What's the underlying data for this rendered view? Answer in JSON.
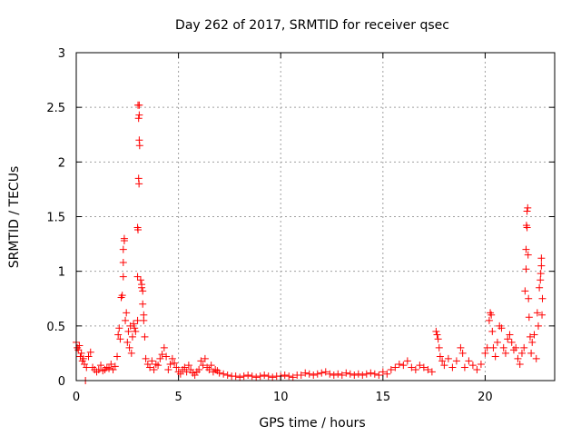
{
  "chart_data": {
    "type": "scatter",
    "title": "Day 262 of 2017, SRMTID for receiver qsec",
    "xlabel": "GPS time / hours",
    "ylabel": "SRMTID / TECUs",
    "xlim": [
      0,
      23.4
    ],
    "ylim": [
      0,
      3
    ],
    "xticks": [
      0,
      5,
      10,
      15,
      20
    ],
    "xtick_labels": [
      "0",
      "5",
      "10",
      "15",
      "20"
    ],
    "yticks": [
      0,
      0.5,
      1,
      1.5,
      2,
      2.5,
      3
    ],
    "ytick_labels": [
      "0",
      "0.5",
      "1",
      "1.5",
      "2",
      "2.5",
      "3"
    ],
    "grid": true,
    "marker": "+",
    "color": "#ff0000",
    "series": [
      {
        "name": "SRMTID",
        "points": [
          [
            0.0,
            0.35
          ],
          [
            0.05,
            0.3
          ],
          [
            0.1,
            0.28
          ],
          [
            0.15,
            0.32
          ],
          [
            0.2,
            0.22
          ],
          [
            0.25,
            0.25
          ],
          [
            0.3,
            0.18
          ],
          [
            0.35,
            0.2
          ],
          [
            0.4,
            0.15
          ],
          [
            0.45,
            0.0
          ],
          [
            0.5,
            0.12
          ],
          [
            0.6,
            0.22
          ],
          [
            0.7,
            0.26
          ],
          [
            0.8,
            0.12
          ],
          [
            0.9,
            0.1
          ],
          [
            1.0,
            0.08
          ],
          [
            1.1,
            0.1
          ],
          [
            1.2,
            0.14
          ],
          [
            1.3,
            0.09
          ],
          [
            1.4,
            0.1
          ],
          [
            1.5,
            0.12
          ],
          [
            1.6,
            0.11
          ],
          [
            1.7,
            0.15
          ],
          [
            1.8,
            0.1
          ],
          [
            1.9,
            0.13
          ],
          [
            2.0,
            0.22
          ],
          [
            2.05,
            0.42
          ],
          [
            2.1,
            0.48
          ],
          [
            2.15,
            0.38
          ],
          [
            2.2,
            0.76
          ],
          [
            2.25,
            0.78
          ],
          [
            2.3,
            0.95
          ],
          [
            2.3,
            1.08
          ],
          [
            2.3,
            1.2
          ],
          [
            2.35,
            1.28
          ],
          [
            2.35,
            1.3
          ],
          [
            2.4,
            0.55
          ],
          [
            2.45,
            0.62
          ],
          [
            2.5,
            0.35
          ],
          [
            2.55,
            0.45
          ],
          [
            2.6,
            0.3
          ],
          [
            2.65,
            0.5
          ],
          [
            2.7,
            0.25
          ],
          [
            2.75,
            0.4
          ],
          [
            2.8,
            0.52
          ],
          [
            2.85,
            0.48
          ],
          [
            2.9,
            0.45
          ],
          [
            3.0,
            0.55
          ],
          [
            3.0,
            0.95
          ],
          [
            3.0,
            1.4
          ],
          [
            3.02,
            1.38
          ],
          [
            3.05,
            1.85
          ],
          [
            3.07,
            1.8
          ],
          [
            3.1,
            2.15
          ],
          [
            3.08,
            2.2
          ],
          [
            3.05,
            2.4
          ],
          [
            3.08,
            2.43
          ],
          [
            3.02,
            2.52
          ],
          [
            3.08,
            2.52
          ],
          [
            3.15,
            0.92
          ],
          [
            3.2,
            0.88
          ],
          [
            3.2,
            0.85
          ],
          [
            3.25,
            0.7
          ],
          [
            3.25,
            0.82
          ],
          [
            3.3,
            0.55
          ],
          [
            3.3,
            0.6
          ],
          [
            3.35,
            0.4
          ],
          [
            3.4,
            0.2
          ],
          [
            3.5,
            0.15
          ],
          [
            3.6,
            0.12
          ],
          [
            3.7,
            0.18
          ],
          [
            3.8,
            0.1
          ],
          [
            3.9,
            0.15
          ],
          [
            4.0,
            0.14
          ],
          [
            4.1,
            0.2
          ],
          [
            4.2,
            0.24
          ],
          [
            4.3,
            0.3
          ],
          [
            4.4,
            0.22
          ],
          [
            4.5,
            0.1
          ],
          [
            4.6,
            0.15
          ],
          [
            4.7,
            0.2
          ],
          [
            4.8,
            0.16
          ],
          [
            4.9,
            0.12
          ],
          [
            5.0,
            0.08
          ],
          [
            5.1,
            0.06
          ],
          [
            5.2,
            0.1
          ],
          [
            5.3,
            0.12
          ],
          [
            5.4,
            0.08
          ],
          [
            5.5,
            0.14
          ],
          [
            5.6,
            0.1
          ],
          [
            5.7,
            0.07
          ],
          [
            5.8,
            0.05
          ],
          [
            5.9,
            0.08
          ],
          [
            6.0,
            0.1
          ],
          [
            6.1,
            0.18
          ],
          [
            6.2,
            0.14
          ],
          [
            6.3,
            0.2
          ],
          [
            6.4,
            0.12
          ],
          [
            6.5,
            0.1
          ],
          [
            6.6,
            0.14
          ],
          [
            6.7,
            0.08
          ],
          [
            6.8,
            0.1
          ],
          [
            6.9,
            0.09
          ],
          [
            7.0,
            0.07
          ],
          [
            7.2,
            0.06
          ],
          [
            7.4,
            0.05
          ],
          [
            7.6,
            0.04
          ],
          [
            7.8,
            0.04
          ],
          [
            8.0,
            0.03
          ],
          [
            8.2,
            0.04
          ],
          [
            8.4,
            0.05
          ],
          [
            8.6,
            0.04
          ],
          [
            8.8,
            0.03
          ],
          [
            9.0,
            0.04
          ],
          [
            9.2,
            0.05
          ],
          [
            9.4,
            0.04
          ],
          [
            9.6,
            0.03
          ],
          [
            9.8,
            0.04
          ],
          [
            10.0,
            0.04
          ],
          [
            10.2,
            0.05
          ],
          [
            10.4,
            0.04
          ],
          [
            10.6,
            0.03
          ],
          [
            10.8,
            0.05
          ],
          [
            11.0,
            0.05
          ],
          [
            11.2,
            0.07
          ],
          [
            11.4,
            0.06
          ],
          [
            11.6,
            0.05
          ],
          [
            11.8,
            0.06
          ],
          [
            12.0,
            0.07
          ],
          [
            12.2,
            0.08
          ],
          [
            12.4,
            0.06
          ],
          [
            12.6,
            0.05
          ],
          [
            12.8,
            0.06
          ],
          [
            13.0,
            0.05
          ],
          [
            13.2,
            0.07
          ],
          [
            13.4,
            0.06
          ],
          [
            13.6,
            0.05
          ],
          [
            13.8,
            0.06
          ],
          [
            14.0,
            0.05
          ],
          [
            14.2,
            0.06
          ],
          [
            14.4,
            0.07
          ],
          [
            14.6,
            0.06
          ],
          [
            14.8,
            0.05
          ],
          [
            15.0,
            0.08
          ],
          [
            15.2,
            0.06
          ],
          [
            15.4,
            0.1
          ],
          [
            15.6,
            0.12
          ],
          [
            15.8,
            0.15
          ],
          [
            16.0,
            0.14
          ],
          [
            16.2,
            0.18
          ],
          [
            16.4,
            0.12
          ],
          [
            16.6,
            0.1
          ],
          [
            16.8,
            0.14
          ],
          [
            17.0,
            0.12
          ],
          [
            17.2,
            0.1
          ],
          [
            17.4,
            0.08
          ],
          [
            17.6,
            0.45
          ],
          [
            17.65,
            0.42
          ],
          [
            17.7,
            0.38
          ],
          [
            17.75,
            0.3
          ],
          [
            17.8,
            0.22
          ],
          [
            17.9,
            0.18
          ],
          [
            18.0,
            0.14
          ],
          [
            18.2,
            0.2
          ],
          [
            18.4,
            0.12
          ],
          [
            18.6,
            0.18
          ],
          [
            18.8,
            0.3
          ],
          [
            18.9,
            0.25
          ],
          [
            19.0,
            0.12
          ],
          [
            19.2,
            0.18
          ],
          [
            19.4,
            0.14
          ],
          [
            19.6,
            0.1
          ],
          [
            19.8,
            0.15
          ],
          [
            20.0,
            0.25
          ],
          [
            20.1,
            0.3
          ],
          [
            20.2,
            0.55
          ],
          [
            20.25,
            0.62
          ],
          [
            20.3,
            0.6
          ],
          [
            20.35,
            0.45
          ],
          [
            20.4,
            0.3
          ],
          [
            20.5,
            0.22
          ],
          [
            20.6,
            0.35
          ],
          [
            20.7,
            0.5
          ],
          [
            20.8,
            0.48
          ],
          [
            20.9,
            0.3
          ],
          [
            21.0,
            0.25
          ],
          [
            21.1,
            0.38
          ],
          [
            21.2,
            0.42
          ],
          [
            21.3,
            0.35
          ],
          [
            21.4,
            0.28
          ],
          [
            21.5,
            0.3
          ],
          [
            21.6,
            0.2
          ],
          [
            21.7,
            0.15
          ],
          [
            21.8,
            0.25
          ],
          [
            21.9,
            0.3
          ],
          [
            21.95,
            0.82
          ],
          [
            22.0,
            1.02
          ],
          [
            22.0,
            1.2
          ],
          [
            22.02,
            1.42
          ],
          [
            22.05,
            1.4
          ],
          [
            22.05,
            1.55
          ],
          [
            22.08,
            1.58
          ],
          [
            22.1,
            1.15
          ],
          [
            22.12,
            0.75
          ],
          [
            22.15,
            0.58
          ],
          [
            22.2,
            0.4
          ],
          [
            22.25,
            0.25
          ],
          [
            22.3,
            0.35
          ],
          [
            22.4,
            0.42
          ],
          [
            22.5,
            0.2
          ],
          [
            22.55,
            0.62
          ],
          [
            22.6,
            0.5
          ],
          [
            22.65,
            0.85
          ],
          [
            22.7,
            0.92
          ],
          [
            22.72,
            0.98
          ],
          [
            22.75,
            1.05
          ],
          [
            22.75,
            1.12
          ],
          [
            22.78,
            0.6
          ],
          [
            22.8,
            0.75
          ]
        ]
      }
    ]
  }
}
